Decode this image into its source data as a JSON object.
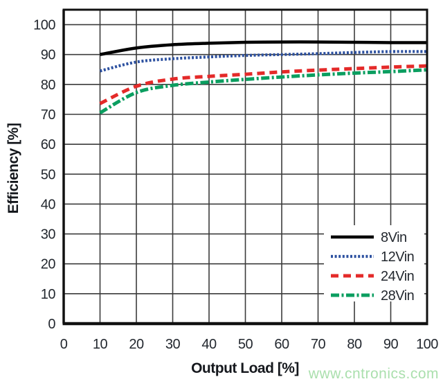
{
  "watermark": {
    "text": "www.cntronics.com",
    "color": "#aadfad"
  },
  "styles": {
    "background": "#ffffff",
    "grid_color": "#3b3b3b",
    "axis_color": "#111111",
    "label_color": "#23282f",
    "legend_background": "#ffffff"
  },
  "chart_data": {
    "type": "line",
    "title": "",
    "xlabel": "Output Load [%]",
    "ylabel": "Efficiency [%]",
    "xlim": [
      0,
      100
    ],
    "ylim": [
      0,
      105
    ],
    "x_ticks": [
      0,
      10,
      20,
      30,
      40,
      50,
      60,
      70,
      80,
      90,
      100
    ],
    "y_ticks": [
      0,
      10,
      20,
      30,
      40,
      50,
      60,
      70,
      80,
      90,
      100
    ],
    "grid": true,
    "legend_position": "lower right",
    "x": [
      10,
      20,
      30,
      40,
      50,
      60,
      70,
      80,
      90,
      100
    ],
    "series": [
      {
        "name": "8Vin",
        "color": "#000000",
        "style": "solid",
        "values": [
          90.0,
          92.2,
          93.3,
          93.8,
          94.1,
          94.2,
          94.2,
          94.1,
          94.0,
          94.0
        ]
      },
      {
        "name": "12Vin",
        "color": "#2d51a0",
        "style": "dotted",
        "values": [
          84.5,
          87.5,
          88.6,
          89.2,
          89.7,
          90.0,
          90.3,
          90.7,
          91.0,
          91.0
        ]
      },
      {
        "name": "24Vin",
        "color": "#e42a29",
        "style": "dashed",
        "values": [
          73.6,
          79.4,
          81.8,
          82.7,
          83.4,
          84.2,
          84.8,
          85.3,
          85.8,
          86.2
        ]
      },
      {
        "name": "28Vin",
        "color": "#0b9e60",
        "style": "dashdot",
        "values": [
          70.5,
          77.3,
          79.7,
          80.8,
          81.7,
          82.5,
          83.2,
          83.8,
          84.3,
          84.9
        ]
      }
    ]
  }
}
